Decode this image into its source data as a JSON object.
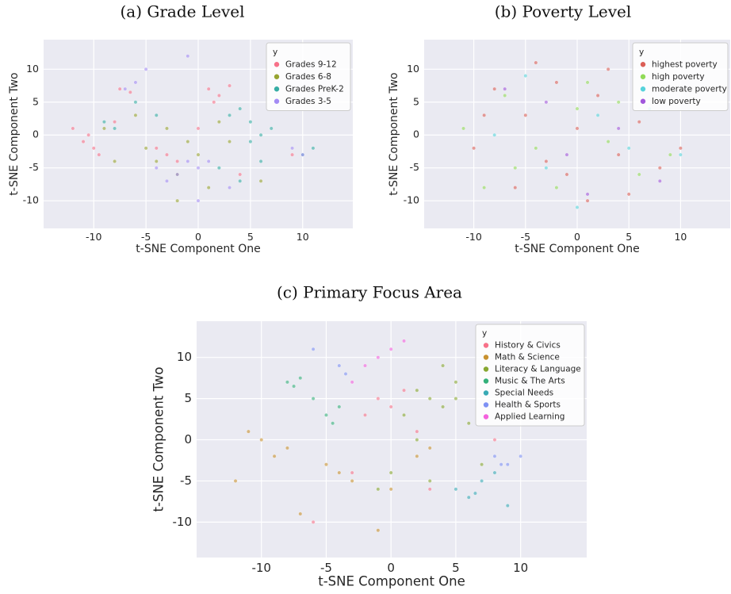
{
  "chart_data": [
    {
      "type": "scatter",
      "title": "(a) Grade Level",
      "xlabel": "t-SNE Component One",
      "ylabel": "t-SNE Component Two",
      "legend_title": "y",
      "legend": "upper right",
      "grid": true,
      "xlim": [
        -14.8,
        14.8
      ],
      "ylim": [
        -14.2,
        14.5
      ],
      "xticks": [
        -10,
        -5,
        0,
        5,
        10
      ],
      "yticks": [
        -10,
        -5,
        0,
        5,
        10
      ],
      "series": [
        {
          "name": "Grades 9-12",
          "color": "#f77189",
          "x": [
            -11,
            -10,
            -9.5,
            -10.5,
            -7.5,
            -6.5,
            1,
            2,
            3,
            1.5,
            -3,
            -2,
            -4,
            0,
            -8,
            -12,
            4,
            9
          ],
          "y": [
            -1,
            -2,
            -3,
            0,
            7,
            6.5,
            7,
            6,
            7.5,
            5,
            -3,
            -4,
            -2,
            1,
            2,
            1,
            -6,
            -3
          ]
        },
        {
          "name": "Grades 6-8",
          "color": "#97a431",
          "x": [
            -5,
            -4,
            -2,
            0,
            -3,
            -1,
            2,
            -6,
            -8,
            3,
            1,
            -9,
            6,
            -2
          ],
          "y": [
            -2,
            -4,
            -6,
            -3,
            1,
            -1,
            2,
            3,
            -4,
            -1,
            -8,
            1,
            -7,
            -10
          ]
        },
        {
          "name": "Grades PreK-2",
          "color": "#36ada4",
          "x": [
            4,
            5,
            6,
            5,
            3,
            7,
            -8,
            -9,
            -4,
            -6,
            10,
            11,
            6,
            2,
            4
          ],
          "y": [
            4,
            2,
            0,
            -1,
            3,
            1,
            1,
            2,
            3,
            5,
            -3,
            -2,
            -4,
            -5,
            -7
          ]
        },
        {
          "name": "Grades 3-5",
          "color": "#a48cf4",
          "x": [
            -7,
            -6,
            -1,
            0,
            -2,
            1,
            -3,
            3,
            -4,
            -5,
            9,
            10,
            -1,
            0
          ],
          "y": [
            7,
            8,
            -4,
            -5,
            -6,
            -4,
            -7,
            -8,
            -5,
            10,
            -2,
            -3,
            12,
            -10
          ]
        }
      ]
    },
    {
      "type": "scatter",
      "title": "(b) Poverty Level",
      "xlabel": "t-SNE Component One",
      "ylabel": "t-SNE Component Two",
      "legend_title": "y",
      "legend": "upper right",
      "grid": true,
      "xlim": [
        -14.8,
        14.8
      ],
      "ylim": [
        -14.2,
        14.5
      ],
      "xticks": [
        -10,
        -5,
        0,
        5,
        10
      ],
      "yticks": [
        -10,
        -5,
        0,
        5,
        10
      ],
      "series": [
        {
          "name": "highest poverty",
          "color": "#db5f57",
          "x": [
            -10,
            -8,
            -5,
            -3,
            0,
            2,
            4,
            6,
            8,
            -6,
            -2,
            1,
            3,
            -9,
            10,
            -1,
            5,
            -4
          ],
          "y": [
            -2,
            7,
            3,
            -4,
            1,
            6,
            -3,
            2,
            -5,
            -8,
            8,
            -10,
            10,
            3,
            -2,
            -6,
            -9,
            11
          ]
        },
        {
          "name": "high poverty",
          "color": "#91db57",
          "x": [
            -11,
            -7,
            -4,
            0,
            3,
            6,
            9,
            -2,
            1,
            -6,
            4,
            -9
          ],
          "y": [
            1,
            6,
            -2,
            4,
            -1,
            -6,
            -3,
            -8,
            8,
            -5,
            5,
            -8
          ]
        },
        {
          "name": "moderate poverty",
          "color": "#57d3db",
          "x": [
            -8,
            -3,
            2,
            5,
            10,
            -5,
            0,
            7
          ],
          "y": [
            0,
            -5,
            3,
            -2,
            -3,
            9,
            -11,
            4
          ]
        },
        {
          "name": "low poverty",
          "color": "#a157db",
          "x": [
            -7,
            -1,
            4,
            -3,
            8,
            1
          ],
          "y": [
            7,
            -3,
            1,
            5,
            -7,
            -9
          ]
        }
      ]
    },
    {
      "type": "scatter",
      "title": "(c) Primary Focus Area",
      "xlabel": "t-SNE Component One",
      "ylabel": "t-SNE Component Two",
      "legend_title": "y",
      "legend": "upper right",
      "grid": true,
      "xlim": [
        -15,
        15.1
      ],
      "ylim": [
        -14.3,
        14.4
      ],
      "xticks": [
        -10,
        -5,
        0,
        5,
        10
      ],
      "yticks": [
        -10,
        -5,
        0,
        5,
        10
      ],
      "series": [
        {
          "name": "History & Civics",
          "color": "#f77189",
          "x": [
            -1,
            0,
            1,
            -2,
            2,
            -3,
            3,
            -6,
            8
          ],
          "y": [
            5,
            4,
            6,
            3,
            1,
            -4,
            -6,
            -10,
            0
          ]
        },
        {
          "name": "Math & Science",
          "color": "#c8912f",
          "x": [
            -10,
            -9,
            -11,
            -8,
            -4,
            -3,
            -5,
            0,
            2,
            -12,
            -7,
            3,
            -1
          ],
          "y": [
            0,
            -2,
            1,
            -1,
            -4,
            -5,
            -3,
            -6,
            -2,
            -5,
            -9,
            -1,
            -11
          ]
        },
        {
          "name": "Literacy & Language",
          "color": "#87a731",
          "x": [
            2,
            3,
            4,
            5,
            1,
            0,
            6,
            3,
            7,
            -1,
            2,
            4,
            5
          ],
          "y": [
            6,
            5,
            4,
            7,
            3,
            -4,
            2,
            -5,
            -3,
            -6,
            0,
            9,
            5
          ]
        },
        {
          "name": "Music & The Arts",
          "color": "#33b07a",
          "x": [
            -8,
            -7.5,
            -7,
            -5,
            -4,
            -4.5,
            -6
          ],
          "y": [
            7,
            6.5,
            7.5,
            3,
            4,
            2,
            5
          ]
        },
        {
          "name": "Special Needs",
          "color": "#38aab5",
          "x": [
            5,
            6,
            7,
            8,
            6.5,
            9
          ],
          "y": [
            -6,
            -7,
            -5,
            -4,
            -6.5,
            -8
          ]
        },
        {
          "name": "Health & Sports",
          "color": "#7e91f4",
          "x": [
            -4,
            -3.5,
            8,
            9,
            10,
            8.5,
            -6
          ],
          "y": [
            9,
            8,
            -2,
            -3,
            -2,
            -3,
            11
          ]
        },
        {
          "name": "Applied Learning",
          "color": "#f461dd",
          "x": [
            -2,
            -1,
            1,
            0,
            -3
          ],
          "y": [
            9,
            10,
            12,
            11,
            7
          ]
        }
      ]
    }
  ]
}
